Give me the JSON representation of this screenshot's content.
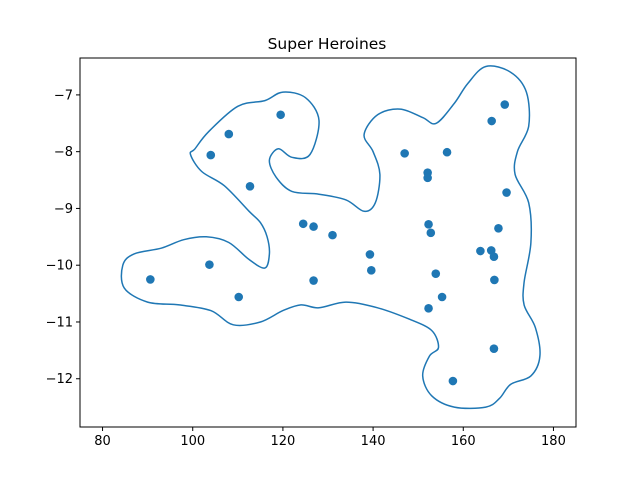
{
  "chart_data": {
    "type": "scatter",
    "title": "Super Heroines",
    "xlabel": "",
    "ylabel": "",
    "xlim": [
      75,
      185
    ],
    "ylim": [
      -12.85,
      -6.35
    ],
    "x_ticks": [
      80,
      100,
      120,
      140,
      160,
      180
    ],
    "y_ticks": [
      -7,
      -8,
      -9,
      -10,
      -11,
      -12
    ],
    "grid": false,
    "point_color": "#1f77b4",
    "contour_color": "#1f77b4",
    "points": [
      {
        "x": 90.6,
        "y": -10.25
      },
      {
        "x": 103.7,
        "y": -9.99
      },
      {
        "x": 110.2,
        "y": -10.56
      },
      {
        "x": 104.0,
        "y": -8.06
      },
      {
        "x": 108.0,
        "y": -7.69
      },
      {
        "x": 119.5,
        "y": -7.35
      },
      {
        "x": 112.7,
        "y": -8.61
      },
      {
        "x": 124.5,
        "y": -9.27
      },
      {
        "x": 126.8,
        "y": -9.32
      },
      {
        "x": 131.0,
        "y": -9.47
      },
      {
        "x": 126.8,
        "y": -10.27
      },
      {
        "x": 139.3,
        "y": -9.81
      },
      {
        "x": 139.6,
        "y": -10.09
      },
      {
        "x": 147.0,
        "y": -8.03
      },
      {
        "x": 152.1,
        "y": -8.37
      },
      {
        "x": 152.1,
        "y": -8.46
      },
      {
        "x": 156.4,
        "y": -8.01
      },
      {
        "x": 152.3,
        "y": -9.28
      },
      {
        "x": 152.8,
        "y": -9.43
      },
      {
        "x": 153.9,
        "y": -10.15
      },
      {
        "x": 155.3,
        "y": -10.56
      },
      {
        "x": 152.3,
        "y": -10.76
      },
      {
        "x": 157.7,
        "y": -12.04
      },
      {
        "x": 166.3,
        "y": -7.46
      },
      {
        "x": 169.2,
        "y": -7.17
      },
      {
        "x": 169.6,
        "y": -8.72
      },
      {
        "x": 167.8,
        "y": -9.35
      },
      {
        "x": 163.8,
        "y": -9.75
      },
      {
        "x": 166.2,
        "y": -9.74
      },
      {
        "x": 166.8,
        "y": -9.85
      },
      {
        "x": 166.9,
        "y": -10.26
      },
      {
        "x": 166.8,
        "y": -11.47
      }
    ],
    "contour": [
      [
        103.5,
        -7.65
      ],
      [
        110,
        -7.2
      ],
      [
        116,
        -7.1
      ],
      [
        120,
        -6.95
      ],
      [
        125,
        -7.05
      ],
      [
        128,
        -7.45
      ],
      [
        126,
        -8.05
      ],
      [
        122,
        -8.1
      ],
      [
        119,
        -7.95
      ],
      [
        117,
        -8.15
      ],
      [
        118.5,
        -8.45
      ],
      [
        122,
        -8.7
      ],
      [
        128,
        -8.75
      ],
      [
        134,
        -8.85
      ],
      [
        138,
        -9.05
      ],
      [
        140.5,
        -8.9
      ],
      [
        141.5,
        -8.4
      ],
      [
        140,
        -8.0
      ],
      [
        138,
        -7.7
      ],
      [
        141,
        -7.35
      ],
      [
        146,
        -7.25
      ],
      [
        151,
        -7.4
      ],
      [
        154,
        -7.5
      ],
      [
        158,
        -7.15
      ],
      [
        161,
        -6.8
      ],
      [
        165,
        -6.5
      ],
      [
        170.5,
        -6.6
      ],
      [
        174,
        -6.95
      ],
      [
        174.5,
        -7.55
      ],
      [
        172,
        -8.0
      ],
      [
        171.5,
        -8.4
      ],
      [
        174.5,
        -8.9
      ],
      [
        175,
        -9.6
      ],
      [
        173.5,
        -10.3
      ],
      [
        173.5,
        -10.7
      ],
      [
        176,
        -11.1
      ],
      [
        177,
        -11.6
      ],
      [
        175,
        -11.95
      ],
      [
        170.5,
        -12.1
      ],
      [
        168,
        -12.35
      ],
      [
        165,
        -12.5
      ],
      [
        158,
        -12.5
      ],
      [
        153,
        -12.3
      ],
      [
        151,
        -11.95
      ],
      [
        152.5,
        -11.6
      ],
      [
        154.5,
        -11.45
      ],
      [
        153,
        -11.15
      ],
      [
        148,
        -10.95
      ],
      [
        141,
        -10.75
      ],
      [
        134,
        -10.65
      ],
      [
        128,
        -10.75
      ],
      [
        124,
        -10.7
      ],
      [
        120,
        -10.8
      ],
      [
        115,
        -11.0
      ],
      [
        109,
        -11.05
      ],
      [
        104,
        -10.8
      ],
      [
        97,
        -10.7
      ],
      [
        90,
        -10.65
      ],
      [
        84.8,
        -10.4
      ],
      [
        84.5,
        -10.0
      ],
      [
        87,
        -9.8
      ],
      [
        93,
        -9.7
      ],
      [
        98,
        -9.55
      ],
      [
        103,
        -9.5
      ],
      [
        108,
        -9.6
      ],
      [
        112.5,
        -9.9
      ],
      [
        116,
        -10.05
      ],
      [
        117,
        -9.8
      ],
      [
        116.5,
        -9.5
      ],
      [
        115,
        -9.25
      ],
      [
        112.5,
        -9.05
      ],
      [
        107,
        -8.6
      ],
      [
        102,
        -8.35
      ],
      [
        99.5,
        -8.05
      ],
      [
        100.5,
        -7.95
      ]
    ]
  }
}
